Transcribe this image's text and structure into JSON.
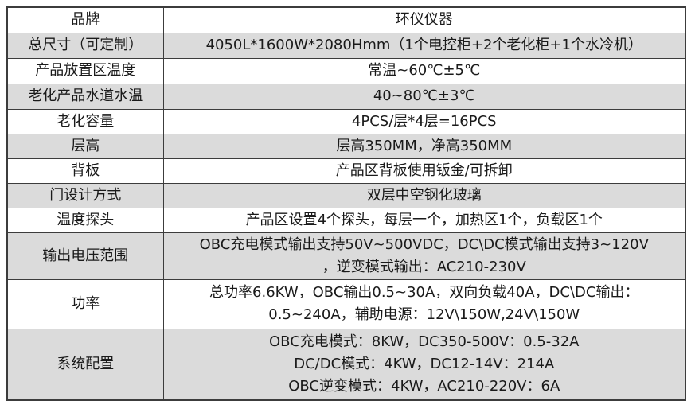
{
  "table": {
    "rows": [
      {
        "label": "品牌",
        "value": [
          "环仪仪器"
        ],
        "shaded": false
      },
      {
        "label": "总尺寸（可定制）",
        "value": [
          "4050L*1600W*2080Hmm（1个电控柜+2个老化柜+1个水冷机）"
        ],
        "shaded": true
      },
      {
        "label": "产品放置区温度",
        "value": [
          "常温~60℃±5℃"
        ],
        "shaded": false
      },
      {
        "label": "老化产品水道水温",
        "value": [
          "40~80℃±3℃"
        ],
        "shaded": true
      },
      {
        "label": "老化容量",
        "value": [
          "4PCS/层*4层=16PCS"
        ],
        "shaded": false
      },
      {
        "label": "层高",
        "value": [
          "层高350MM，净高350MM"
        ],
        "shaded": true
      },
      {
        "label": "背板",
        "value": [
          "产品区背板使用钣金/可拆卸"
        ],
        "shaded": false
      },
      {
        "label": "门设计方式",
        "value": [
          "双层中空钢化玻璃"
        ],
        "shaded": true
      },
      {
        "label": "温度探头",
        "value": [
          "产品区设置4个探头，每层一个，加热区1个，负载区1个"
        ],
        "shaded": false
      },
      {
        "label": "输出电压范围",
        "value": [
          "OBC充电模式输出支持50V~500VDC，DC\\DC模式输出支持3~120V",
          "，逆变模式输出：AC210-230V"
        ],
        "shaded": true
      },
      {
        "label": "功率",
        "value": [
          "总功率6.6KW，OBC输出0.5~30A，双向负载40A，DC\\DC输出：",
          "0.5~240A，辅助电源：12V\\150W,24V\\150W"
        ],
        "shaded": false
      },
      {
        "label": "系统配置",
        "value": [
          "OBC充电模式：8KW，DC350-500V：0.5-32A",
          "DC/DC模式：4KW，DC12-14V：214A",
          "OBC逆变模式：4KW，AC210-220V：6A"
        ],
        "shaded": true
      }
    ]
  }
}
